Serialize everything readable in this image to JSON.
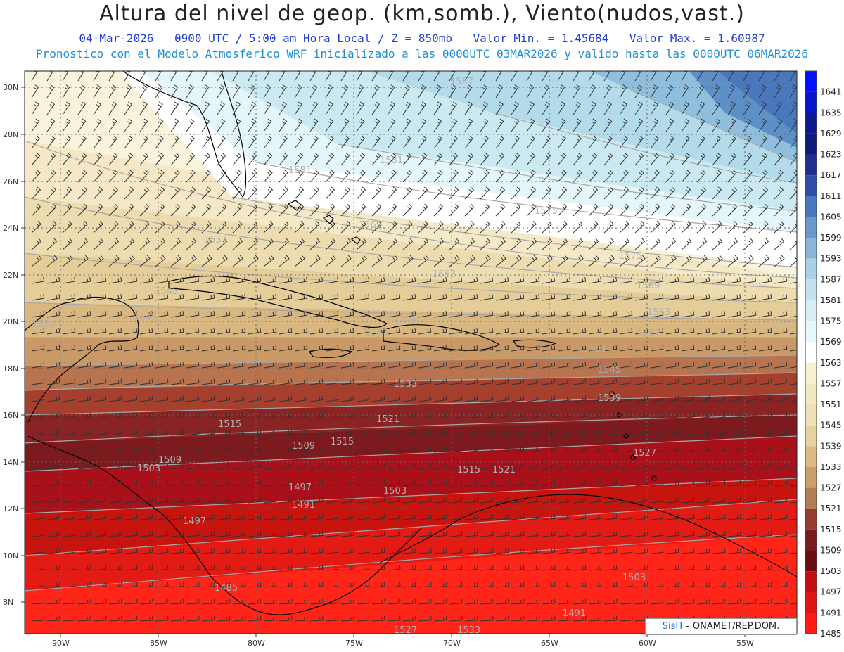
{
  "header": {
    "title": "Altura del nivel de geop. (km,somb.), Viento(nudos,vast.)",
    "date": "04-Mar-2026",
    "time": "0900 UTC / 5:00 am Hora Local / Z = 850mb",
    "min": "Valor Min. = 1.45684",
    "max": "Valor Max. = 1.60987",
    "model_line": "Pronostico con el Modelo Atmosferico WRF inicializado a las 0000UTC_03MAR2026 y valido hasta las  0000UTC_06MAR2026"
  },
  "map": {
    "lat_labels": [
      "30N",
      "28N",
      "26N",
      "24N",
      "22N",
      "20N",
      "18N",
      "16N",
      "14N",
      "12N",
      "10N",
      "8N"
    ],
    "lon_labels": [
      "90W",
      "85W",
      "80W",
      "75W",
      "70W",
      "65W",
      "60W",
      "55W"
    ],
    "contour_labels": [
      "1587",
      "1581",
      "1575",
      "1581",
      "1569",
      "1557",
      "1563",
      "1575",
      "1569",
      "1563",
      "1545",
      "1539",
      "1557",
      "1551",
      "1545",
      "1557",
      "1551",
      "1545",
      "1533",
      "1539",
      "1527",
      "1521",
      "1515",
      "1509",
      "1503",
      "1509",
      "1515",
      "1521",
      "1497",
      "1491",
      "1503",
      "1515",
      "1485",
      "1497",
      "1503",
      "1491",
      "1527",
      "1533"
    ],
    "colors": {
      "ocean_top": "#ffffff",
      "land_line": "#000000",
      "contour_line": "#9a9a9a",
      "wind_barb": "#333333"
    }
  },
  "colorbar": {
    "labels": [
      "1641",
      "1635",
      "1629",
      "1623",
      "1617",
      "1611",
      "1605",
      "1599",
      "1593",
      "1587",
      "1581",
      "1575",
      "1569",
      "1563",
      "1557",
      "1551",
      "1545",
      "1539",
      "1533",
      "1527",
      "1521",
      "1515",
      "1509",
      "1503",
      "1497",
      "1491",
      "1485"
    ],
    "colors": [
      "#0010ff",
      "#0a14c8",
      "#101890",
      "#121a78",
      "#1f2f90",
      "#2f4ea8",
      "#4a78c0",
      "#6b98cc",
      "#8ab4d8",
      "#a8d0e6",
      "#c2e2ee",
      "#d6eef4",
      "#e6f8fb",
      "#ffffff",
      "#f7f1d0",
      "#f2e8c2",
      "#ece0b4",
      "#e6d29e",
      "#d9bb82",
      "#c9a06a",
      "#b17e55",
      "#963c2c",
      "#7a1a1e",
      "#6a0d12",
      "#c40f12",
      "#df1512",
      "#ff1a14"
    ]
  },
  "credit": {
    "brand": "SisΠ",
    "text": "– ONAMET/REP.DOM."
  }
}
